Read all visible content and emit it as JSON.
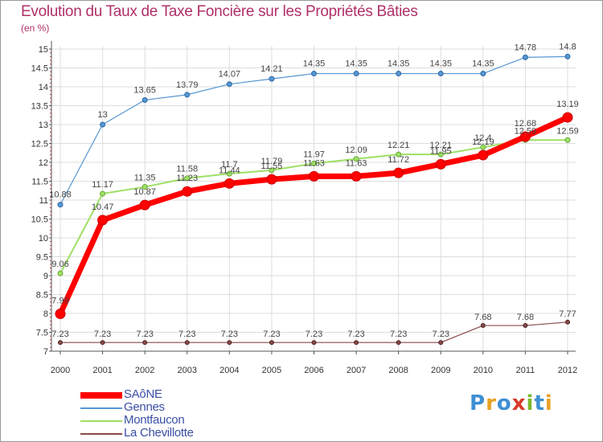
{
  "title": "Evolution du Taux de Taxe Foncière sur les Propriétés Bâties",
  "subtitle": "(en %)",
  "logo": {
    "text": "Proxiti",
    "letters": [
      {
        "ch": "P",
        "color": "#3e8fd3"
      },
      {
        "ch": "r",
        "color": "#e8a224"
      },
      {
        "ch": "o",
        "color": "#3e8fd3"
      },
      {
        "ch": "x",
        "color": "#d83a2a"
      },
      {
        "ch": "i",
        "color": "#7cb82f"
      },
      {
        "ch": "t",
        "color": "#3e8fd3"
      },
      {
        "ch": "i",
        "color": "#e8a224"
      }
    ]
  },
  "chart_data": {
    "type": "line",
    "title": "Evolution du Taux de Taxe Foncière sur les Propriétés Bâties",
    "ylabel": "(en %)",
    "xlabel": "",
    "x": [
      "2000",
      "2001",
      "2002",
      "2003",
      "2004",
      "2005",
      "2006",
      "2007",
      "2008",
      "2009",
      "2010",
      "2011",
      "2012"
    ],
    "ylim": [
      7,
      15
    ],
    "yticks": [
      "7",
      "7.5",
      "8",
      "8.5",
      "9",
      "9.5",
      "10",
      "10.5",
      "11",
      "11.5",
      "12",
      "12.5",
      "13",
      "13.5",
      "14",
      "14.5",
      "15"
    ],
    "legend_position": "bottom-left",
    "series": [
      {
        "name": "SAôNE",
        "color": "#ff0000",
        "values": [
          7.99,
          10.47,
          10.87,
          11.23,
          11.44,
          11.55,
          11.63,
          11.63,
          11.72,
          11.95,
          12.19,
          12.68,
          13.19
        ],
        "labels": [
          "7.99",
          "10.47",
          "10.87",
          "11.23",
          "11.44",
          "11.55",
          "11.63",
          "11.63",
          "11.72",
          "11.95",
          "12.19",
          "12.68",
          "13.19"
        ]
      },
      {
        "name": "Gennes",
        "color": "#5596d2",
        "values": [
          10.88,
          13,
          13.65,
          13.79,
          14.07,
          14.21,
          14.35,
          14.35,
          14.35,
          14.35,
          14.35,
          14.78,
          14.8
        ],
        "labels": [
          "10.88",
          "13",
          "13.65",
          "13.79",
          "14.07",
          "14.21",
          "14.35",
          "14.35",
          "14.35",
          "14.35",
          "14.35",
          "14.78",
          "14.8"
        ]
      },
      {
        "name": "Montfaucon",
        "color": "#9ee064",
        "values": [
          9.06,
          11.17,
          11.35,
          11.58,
          11.7,
          11.79,
          11.97,
          12.09,
          12.21,
          12.21,
          12.4,
          12.59,
          12.59
        ],
        "labels": [
          "9.06",
          "11.17",
          "11.35",
          "11.58",
          "11.7",
          "11.79",
          "11.97",
          "12.09",
          "12.21",
          "12.21",
          "12.4",
          "12.59",
          "12.59"
        ]
      },
      {
        "name": "La Chevillotte",
        "color": "#8a4a4a",
        "values": [
          7.23,
          7.23,
          7.23,
          7.23,
          7.23,
          7.23,
          7.23,
          7.23,
          7.23,
          7.23,
          7.68,
          7.68,
          7.77
        ],
        "labels": [
          "7.23",
          "7.23",
          "7.23",
          "7.23",
          "7.23",
          "7.23",
          "7.23",
          "7.23",
          "7.23",
          "7.23",
          "7.68",
          "7.68",
          "7.77"
        ]
      }
    ]
  }
}
